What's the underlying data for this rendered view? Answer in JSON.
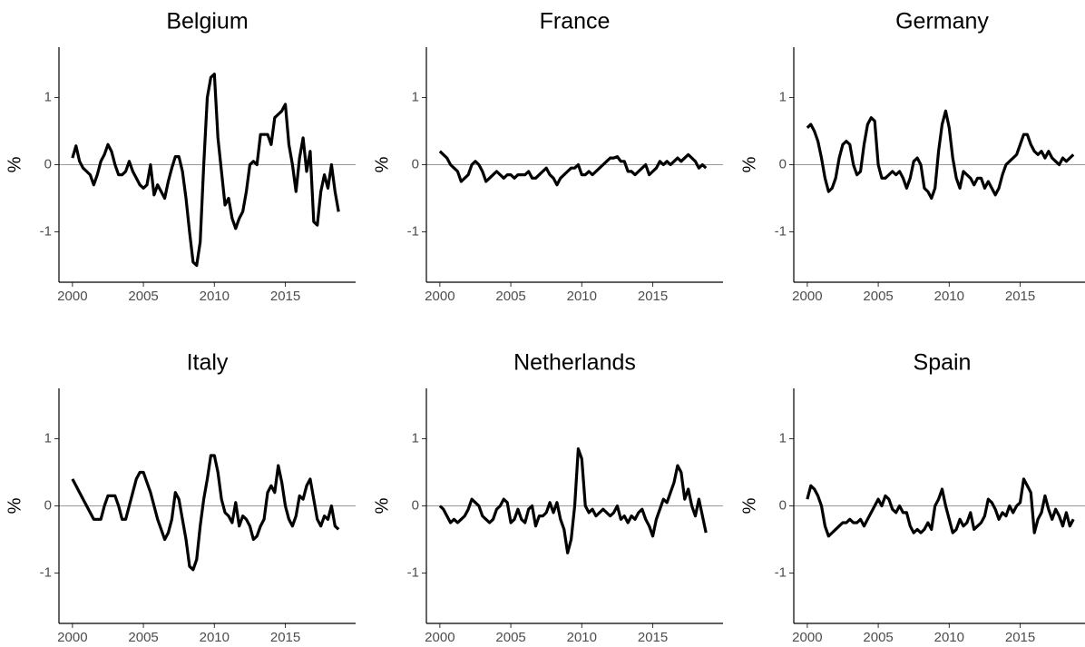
{
  "chart_data": [
    {
      "type": "line",
      "title": "Belgium",
      "y_label": "%",
      "color": "#000000",
      "hline": 0,
      "x": [
        2000,
        2000.25,
        2000.5,
        2000.75,
        2001,
        2001.25,
        2001.5,
        2001.75,
        2002,
        2002.25,
        2002.5,
        2002.75,
        2003,
        2003.25,
        2003.5,
        2003.75,
        2004,
        2004.25,
        2004.5,
        2004.75,
        2005,
        2005.25,
        2005.5,
        2005.75,
        2006,
        2006.25,
        2006.5,
        2006.75,
        2007,
        2007.25,
        2007.5,
        2007.75,
        2008,
        2008.25,
        2008.5,
        2008.75,
        2009,
        2009.25,
        2009.5,
        2009.75,
        2010,
        2010.25,
        2010.5,
        2010.75,
        2011,
        2011.25,
        2011.5,
        2011.75,
        2012,
        2012.25,
        2012.5,
        2012.75,
        2013,
        2013.25,
        2013.5,
        2013.75,
        2014,
        2014.25,
        2014.5,
        2014.75,
        2015,
        2015.25,
        2015.5,
        2015.75,
        2016,
        2016.25,
        2016.5,
        2016.75,
        2017,
        2017.25,
        2017.5,
        2017.75,
        2018,
        2018.25,
        2018.5,
        2018.75
      ],
      "values": [
        0.1,
        0.28,
        0.05,
        -0.05,
        -0.1,
        -0.15,
        -0.3,
        -0.15,
        0.05,
        0.15,
        0.3,
        0.2,
        0.0,
        -0.15,
        -0.15,
        -0.1,
        0.05,
        -0.1,
        -0.2,
        -0.3,
        -0.35,
        -0.3,
        0.0,
        -0.45,
        -0.3,
        -0.4,
        -0.5,
        -0.25,
        -0.05,
        0.12,
        0.12,
        -0.1,
        -0.5,
        -1.0,
        -1.45,
        -1.5,
        -1.15,
        0.0,
        1.0,
        1.3,
        1.35,
        0.4,
        -0.1,
        -0.6,
        -0.5,
        -0.8,
        -0.95,
        -0.8,
        -0.7,
        -0.4,
        0.0,
        0.05,
        0.0,
        0.45,
        0.45,
        0.45,
        0.3,
        0.7,
        0.75,
        0.8,
        0.9,
        0.3,
        0.0,
        -0.4,
        0.1,
        0.4,
        -0.1,
        0.2,
        -0.85,
        -0.9,
        -0.4,
        -0.15,
        -0.35,
        0.0,
        -0.4,
        -0.7
      ],
      "xlim": [
        1999.05,
        2019.95
      ],
      "ylim": [
        -1.75,
        1.75
      ],
      "xticks": [
        2000,
        2005,
        2010,
        2015
      ],
      "yticks": [
        -1,
        0,
        1
      ]
    },
    {
      "type": "line",
      "title": "France",
      "y_label": "%",
      "color": "#000000",
      "hline": 0,
      "x": [
        2000,
        2000.25,
        2000.5,
        2000.75,
        2001,
        2001.25,
        2001.5,
        2001.75,
        2002,
        2002.25,
        2002.5,
        2002.75,
        2003,
        2003.25,
        2003.5,
        2003.75,
        2004,
        2004.25,
        2004.5,
        2004.75,
        2005,
        2005.25,
        2005.5,
        2005.75,
        2006,
        2006.25,
        2006.5,
        2006.75,
        2007,
        2007.25,
        2007.5,
        2007.75,
        2008,
        2008.25,
        2008.5,
        2008.75,
        2009,
        2009.25,
        2009.5,
        2009.75,
        2010,
        2010.25,
        2010.5,
        2010.75,
        2011,
        2011.25,
        2011.5,
        2011.75,
        2012,
        2012.25,
        2012.5,
        2012.75,
        2013,
        2013.25,
        2013.5,
        2013.75,
        2014,
        2014.25,
        2014.5,
        2014.75,
        2015,
        2015.25,
        2015.5,
        2015.75,
        2016,
        2016.25,
        2016.5,
        2016.75,
        2017,
        2017.25,
        2017.5,
        2017.75,
        2018,
        2018.25,
        2018.5,
        2018.75
      ],
      "values": [
        0.2,
        0.15,
        0.1,
        0.0,
        -0.05,
        -0.1,
        -0.25,
        -0.2,
        -0.15,
        0.0,
        0.05,
        0.0,
        -0.1,
        -0.25,
        -0.2,
        -0.15,
        -0.1,
        -0.15,
        -0.2,
        -0.15,
        -0.15,
        -0.2,
        -0.15,
        -0.15,
        -0.15,
        -0.1,
        -0.2,
        -0.2,
        -0.15,
        -0.1,
        -0.05,
        -0.15,
        -0.2,
        -0.3,
        -0.2,
        -0.15,
        -0.1,
        -0.05,
        -0.05,
        0.0,
        -0.15,
        -0.15,
        -0.1,
        -0.15,
        -0.1,
        -0.05,
        0.0,
        0.05,
        0.1,
        0.1,
        0.12,
        0.05,
        0.05,
        -0.1,
        -0.1,
        -0.15,
        -0.1,
        -0.05,
        0.0,
        -0.15,
        -0.1,
        -0.05,
        0.05,
        0.0,
        0.05,
        0.0,
        0.05,
        0.1,
        0.05,
        0.1,
        0.15,
        0.1,
        0.05,
        -0.05,
        0.0,
        -0.05
      ],
      "xlim": [
        1999.05,
        2019.95
      ],
      "ylim": [
        -1.75,
        1.75
      ],
      "xticks": [
        2000,
        2005,
        2010,
        2015
      ],
      "yticks": [
        -1,
        0,
        1
      ]
    },
    {
      "type": "line",
      "title": "Germany",
      "y_label": "%",
      "color": "#000000",
      "hline": 0,
      "x": [
        2000,
        2000.25,
        2000.5,
        2000.75,
        2001,
        2001.25,
        2001.5,
        2001.75,
        2002,
        2002.25,
        2002.5,
        2002.75,
        2003,
        2003.25,
        2003.5,
        2003.75,
        2004,
        2004.25,
        2004.5,
        2004.75,
        2005,
        2005.25,
        2005.5,
        2005.75,
        2006,
        2006.25,
        2006.5,
        2006.75,
        2007,
        2007.25,
        2007.5,
        2007.75,
        2008,
        2008.25,
        2008.5,
        2008.75,
        2009,
        2009.25,
        2009.5,
        2009.75,
        2010,
        2010.25,
        2010.5,
        2010.75,
        2011,
        2011.25,
        2011.5,
        2011.75,
        2012,
        2012.25,
        2012.5,
        2012.75,
        2013,
        2013.25,
        2013.5,
        2013.75,
        2014,
        2014.25,
        2014.5,
        2014.75,
        2015,
        2015.25,
        2015.5,
        2015.75,
        2016,
        2016.25,
        2016.5,
        2016.75,
        2017,
        2017.25,
        2017.5,
        2017.75,
        2018,
        2018.25,
        2018.5,
        2018.75
      ],
      "values": [
        0.55,
        0.6,
        0.5,
        0.35,
        0.1,
        -0.2,
        -0.4,
        -0.35,
        -0.2,
        0.1,
        0.3,
        0.35,
        0.3,
        0.0,
        -0.15,
        -0.1,
        0.3,
        0.6,
        0.7,
        0.65,
        0.0,
        -0.2,
        -0.2,
        -0.15,
        -0.1,
        -0.15,
        -0.1,
        -0.2,
        -0.35,
        -0.2,
        0.05,
        0.1,
        0.0,
        -0.35,
        -0.4,
        -0.5,
        -0.35,
        0.2,
        0.6,
        0.8,
        0.55,
        0.1,
        -0.2,
        -0.35,
        -0.1,
        -0.15,
        -0.2,
        -0.3,
        -0.2,
        -0.2,
        -0.35,
        -0.25,
        -0.35,
        -0.45,
        -0.35,
        -0.15,
        0.0,
        0.05,
        0.1,
        0.15,
        0.3,
        0.45,
        0.45,
        0.3,
        0.2,
        0.15,
        0.2,
        0.1,
        0.2,
        0.1,
        0.05,
        0.0,
        0.1,
        0.05,
        0.1,
        0.15
      ],
      "xlim": [
        1999.05,
        2019.95
      ],
      "ylim": [
        -1.75,
        1.75
      ],
      "xticks": [
        2000,
        2005,
        2010,
        2015
      ],
      "yticks": [
        -1,
        0,
        1
      ]
    },
    {
      "type": "line",
      "title": "Italy",
      "y_label": "%",
      "color": "#000000",
      "hline": 0,
      "x": [
        2000,
        2000.25,
        2000.5,
        2000.75,
        2001,
        2001.25,
        2001.5,
        2001.75,
        2002,
        2002.25,
        2002.5,
        2002.75,
        2003,
        2003.25,
        2003.5,
        2003.75,
        2004,
        2004.25,
        2004.5,
        2004.75,
        2005,
        2005.25,
        2005.5,
        2005.75,
        2006,
        2006.25,
        2006.5,
        2006.75,
        2007,
        2007.25,
        2007.5,
        2007.75,
        2008,
        2008.25,
        2008.5,
        2008.75,
        2009,
        2009.25,
        2009.5,
        2009.75,
        2010,
        2010.25,
        2010.5,
        2010.75,
        2011,
        2011.25,
        2011.5,
        2011.75,
        2012,
        2012.25,
        2012.5,
        2012.75,
        2013,
        2013.25,
        2013.5,
        2013.75,
        2014,
        2014.25,
        2014.5,
        2014.75,
        2015,
        2015.25,
        2015.5,
        2015.75,
        2016,
        2016.25,
        2016.5,
        2016.75,
        2017,
        2017.25,
        2017.5,
        2017.75,
        2018,
        2018.25,
        2018.5,
        2018.75
      ],
      "values": [
        0.4,
        0.3,
        0.2,
        0.1,
        0.0,
        -0.1,
        -0.2,
        -0.2,
        -0.2,
        0.0,
        0.15,
        0.15,
        0.15,
        0.0,
        -0.2,
        -0.2,
        0.0,
        0.2,
        0.4,
        0.5,
        0.5,
        0.35,
        0.2,
        0.0,
        -0.2,
        -0.35,
        -0.5,
        -0.4,
        -0.2,
        0.2,
        0.1,
        -0.2,
        -0.5,
        -0.9,
        -0.95,
        -0.8,
        -0.3,
        0.1,
        0.4,
        0.75,
        0.75,
        0.5,
        0.1,
        -0.1,
        -0.15,
        -0.25,
        0.05,
        -0.3,
        -0.15,
        -0.2,
        -0.3,
        -0.5,
        -0.45,
        -0.3,
        -0.2,
        0.2,
        0.3,
        0.2,
        0.6,
        0.35,
        0.0,
        -0.2,
        -0.3,
        -0.15,
        0.15,
        0.1,
        0.3,
        0.4,
        0.1,
        -0.2,
        -0.3,
        -0.15,
        -0.2,
        0.0,
        -0.3,
        -0.35
      ],
      "xlim": [
        1999.05,
        2019.95
      ],
      "ylim": [
        -1.75,
        1.75
      ],
      "xticks": [
        2000,
        2005,
        2010,
        2015
      ],
      "yticks": [
        -1,
        0,
        1
      ]
    },
    {
      "type": "line",
      "title": "Netherlands",
      "y_label": "%",
      "color": "#000000",
      "hline": 0,
      "x": [
        2000,
        2000.25,
        2000.5,
        2000.75,
        2001,
        2001.25,
        2001.5,
        2001.75,
        2002,
        2002.25,
        2002.5,
        2002.75,
        2003,
        2003.25,
        2003.5,
        2003.75,
        2004,
        2004.25,
        2004.5,
        2004.75,
        2005,
        2005.25,
        2005.5,
        2005.75,
        2006,
        2006.25,
        2006.5,
        2006.75,
        2007,
        2007.25,
        2007.5,
        2007.75,
        2008,
        2008.25,
        2008.5,
        2008.75,
        2009,
        2009.25,
        2009.5,
        2009.75,
        2010,
        2010.25,
        2010.5,
        2010.75,
        2011,
        2011.25,
        2011.5,
        2011.75,
        2012,
        2012.25,
        2012.5,
        2012.75,
        2013,
        2013.25,
        2013.5,
        2013.75,
        2014,
        2014.25,
        2014.5,
        2014.75,
        2015,
        2015.25,
        2015.5,
        2015.75,
        2016,
        2016.25,
        2016.5,
        2016.75,
        2017,
        2017.25,
        2017.5,
        2017.75,
        2018,
        2018.25,
        2018.5,
        2018.75
      ],
      "values": [
        0.0,
        -0.05,
        -0.15,
        -0.25,
        -0.2,
        -0.25,
        -0.2,
        -0.15,
        -0.05,
        0.1,
        0.05,
        0.0,
        -0.15,
        -0.2,
        -0.25,
        -0.2,
        -0.05,
        0.0,
        0.1,
        0.05,
        -0.25,
        -0.2,
        -0.05,
        -0.2,
        -0.25,
        -0.05,
        0.0,
        -0.3,
        -0.15,
        -0.15,
        -0.1,
        0.05,
        -0.1,
        0.05,
        -0.2,
        -0.35,
        -0.7,
        -0.5,
        0.0,
        0.85,
        0.7,
        0.0,
        -0.1,
        -0.05,
        -0.15,
        -0.1,
        -0.05,
        -0.1,
        -0.15,
        -0.1,
        0.0,
        -0.2,
        -0.15,
        -0.25,
        -0.15,
        -0.2,
        -0.1,
        -0.05,
        -0.2,
        -0.3,
        -0.45,
        -0.2,
        -0.05,
        0.1,
        0.05,
        0.2,
        0.35,
        0.6,
        0.5,
        0.1,
        0.25,
        0.0,
        -0.15,
        0.1,
        -0.15,
        -0.4
      ],
      "xlim": [
        1999.05,
        2019.95
      ],
      "ylim": [
        -1.75,
        1.75
      ],
      "xticks": [
        2000,
        2005,
        2010,
        2015
      ],
      "yticks": [
        -1,
        0,
        1
      ]
    },
    {
      "type": "line",
      "title": "Spain",
      "y_label": "%",
      "color": "#000000",
      "hline": 0,
      "x": [
        2000,
        2000.25,
        2000.5,
        2000.75,
        2001,
        2001.25,
        2001.5,
        2001.75,
        2002,
        2002.25,
        2002.5,
        2002.75,
        2003,
        2003.25,
        2003.5,
        2003.75,
        2004,
        2004.25,
        2004.5,
        2004.75,
        2005,
        2005.25,
        2005.5,
        2005.75,
        2006,
        2006.25,
        2006.5,
        2006.75,
        2007,
        2007.25,
        2007.5,
        2007.75,
        2008,
        2008.25,
        2008.5,
        2008.75,
        2009,
        2009.25,
        2009.5,
        2009.75,
        2010,
        2010.25,
        2010.5,
        2010.75,
        2011,
        2011.25,
        2011.5,
        2011.75,
        2012,
        2012.25,
        2012.5,
        2012.75,
        2013,
        2013.25,
        2013.5,
        2013.75,
        2014,
        2014.25,
        2014.5,
        2014.75,
        2015,
        2015.25,
        2015.5,
        2015.75,
        2016,
        2016.25,
        2016.5,
        2016.75,
        2017,
        2017.25,
        2017.5,
        2017.75,
        2018,
        2018.25,
        2018.5,
        2018.75
      ],
      "values": [
        0.1,
        0.3,
        0.25,
        0.15,
        0.0,
        -0.3,
        -0.45,
        -0.4,
        -0.35,
        -0.3,
        -0.25,
        -0.25,
        -0.2,
        -0.25,
        -0.25,
        -0.2,
        -0.3,
        -0.2,
        -0.1,
        0.0,
        0.1,
        0.0,
        0.15,
        0.1,
        -0.05,
        -0.1,
        0.0,
        -0.1,
        -0.1,
        -0.3,
        -0.4,
        -0.35,
        -0.4,
        -0.35,
        -0.25,
        -0.35,
        0.0,
        0.1,
        0.25,
        0.0,
        -0.2,
        -0.4,
        -0.35,
        -0.2,
        -0.3,
        -0.25,
        -0.1,
        -0.35,
        -0.3,
        -0.25,
        -0.15,
        0.1,
        0.05,
        -0.05,
        -0.2,
        -0.1,
        -0.15,
        0.0,
        -0.1,
        0.0,
        0.05,
        0.4,
        0.3,
        0.2,
        -0.4,
        -0.2,
        -0.1,
        0.15,
        -0.05,
        -0.2,
        -0.05,
        -0.15,
        -0.3,
        -0.1,
        -0.3,
        -0.2
      ],
      "xlim": [
        1999.05,
        2019.95
      ],
      "ylim": [
        -1.75,
        1.75
      ],
      "xticks": [
        2000,
        2005,
        2010,
        2015
      ],
      "yticks": [
        -1,
        0,
        1
      ]
    }
  ]
}
